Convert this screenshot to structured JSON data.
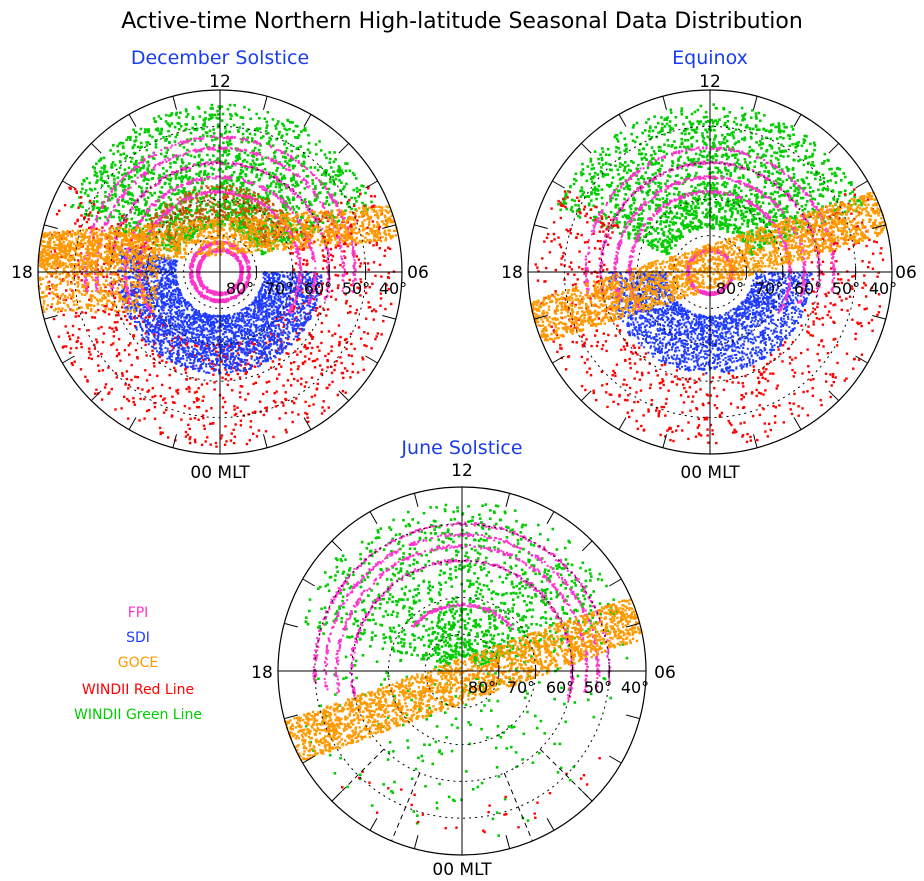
{
  "figure": {
    "title": "Active-time Northern High-latitude Seasonal Data Distribution"
  },
  "chart_data": [
    {
      "type": "scatter",
      "projection": "polar (magnetic latitude vs magnetic local time)",
      "title": "December Solstice",
      "title_color": "#1a3cf0",
      "mlt_labels": {
        "top": "12",
        "left": "18",
        "right": "06",
        "bottom": "00 MLT"
      },
      "lat_ring_labels": [
        "80°",
        "70°",
        "60°",
        "50°",
        "40°"
      ],
      "lat_range": [
        40,
        90
      ],
      "series": [
        {
          "name": "FPI",
          "color": "#ff33cc",
          "arcs": [
            [
              68,
              60,
              300
            ],
            [
              64,
              70,
              290
            ],
            [
              60,
              75,
              285
            ],
            [
              56,
              80,
              280
            ],
            [
              53,
              80,
              280
            ],
            [
              84,
              0,
              360
            ],
            [
              82,
              0,
              360
            ]
          ]
        },
        {
          "name": "SDI",
          "color": "#1f3bff",
          "region": {
            "lat": [
              62,
              78
            ],
            "mlt": [
              13,
              7
            ]
          }
        },
        {
          "name": "GOCE",
          "color": "#ff9900",
          "region": {
            "band": "dawn-dusk orbit tilted toward noon",
            "lat": [
              45,
              90
            ]
          }
        },
        {
          "name": "WINDII Red Line",
          "color": "#ff0000",
          "region": {
            "lat": [
              42,
              70
            ],
            "mlt": [
              16,
              8
            ]
          }
        },
        {
          "name": "WINDII Green Line",
          "color": "#00cc00",
          "region": {
            "lat": [
              45,
              72
            ],
            "mlt": [
              8,
              16
            ]
          }
        }
      ]
    },
    {
      "type": "scatter",
      "projection": "polar (magnetic latitude vs magnetic local time)",
      "title": "Equinox",
      "title_color": "#1a3cf0",
      "mlt_labels": {
        "top": "12",
        "left": "18",
        "right": "06",
        "bottom": "00 MLT"
      },
      "lat_ring_labels": [
        "80°",
        "70°",
        "60°",
        "50°",
        "40°"
      ],
      "lat_range": [
        40,
        90
      ],
      "series": [
        {
          "name": "FPI",
          "color": "#ff33cc",
          "arcs": [
            [
              68,
              60,
              300
            ],
            [
              64,
              70,
              290
            ],
            [
              60,
              75,
              285
            ],
            [
              56,
              80,
              280
            ],
            [
              84,
              0,
              360
            ]
          ]
        },
        {
          "name": "SDI",
          "color": "#1f3bff",
          "region": {
            "lat": [
              62,
              78
            ],
            "mlt": [
              17,
              6
            ]
          }
        },
        {
          "name": "GOCE",
          "color": "#ff9900",
          "region": {
            "band": "dawn-dusk orbit tilted toward noon",
            "lat": [
              45,
              90
            ]
          }
        },
        {
          "name": "WINDII Red Line",
          "color": "#ff0000",
          "region": {
            "lat": [
              42,
              62
            ],
            "mlt": [
              17,
              7
            ]
          }
        },
        {
          "name": "WINDII Green Line",
          "color": "#00cc00",
          "region": {
            "lat": [
              45,
              75
            ],
            "mlt": [
              7,
              17
            ]
          }
        }
      ]
    },
    {
      "type": "scatter",
      "projection": "polar (magnetic latitude vs magnetic local time)",
      "title": "June Solstice",
      "title_color": "#1a3cf0",
      "mlt_labels": {
        "top": "12",
        "left": "18",
        "right": "06",
        "bottom": "00 MLT"
      },
      "lat_ring_labels": [
        "80°",
        "70°",
        "60°",
        "50°",
        "40°"
      ],
      "lat_range": [
        40,
        90
      ],
      "series": [
        {
          "name": "FPI",
          "color": "#ff33cc",
          "arcs": [
            [
              60,
              75,
              285
            ],
            [
              56,
              80,
              280
            ],
            [
              53,
              82,
              278
            ],
            [
              50,
              85,
              275
            ],
            [
              72,
              130,
              230
            ]
          ]
        },
        {
          "name": "SDI",
          "color": "#1f3bff",
          "region": {
            "lat": [
              0,
              0
            ],
            "mlt": [
              0,
              0
            ]
          }
        },
        {
          "name": "GOCE",
          "color": "#ff9900",
          "region": {
            "band": "dawn-dusk orbit tilted toward noon",
            "lat": [
              45,
              90
            ]
          }
        },
        {
          "name": "WINDII Red Line",
          "color": "#ff0000",
          "region": {
            "lat": [
              45,
              55
            ],
            "mlt": [
              20,
              4
            ]
          }
        },
        {
          "name": "WINDII Green Line",
          "color": "#00cc00",
          "region": {
            "lat": [
              42,
              80
            ],
            "mlt": [
              0,
              24
            ]
          }
        }
      ]
    }
  ],
  "legend": {
    "items": [
      {
        "label": "FPI",
        "color": "#ff33cc"
      },
      {
        "label": "SDI",
        "color": "#1f3bff"
      },
      {
        "label": "GOCE",
        "color": "#ff9900"
      },
      {
        "label": "WINDII Red Line",
        "color": "#ff0000"
      },
      {
        "label": "WINDII Green Line",
        "color": "#00cc00"
      }
    ]
  }
}
